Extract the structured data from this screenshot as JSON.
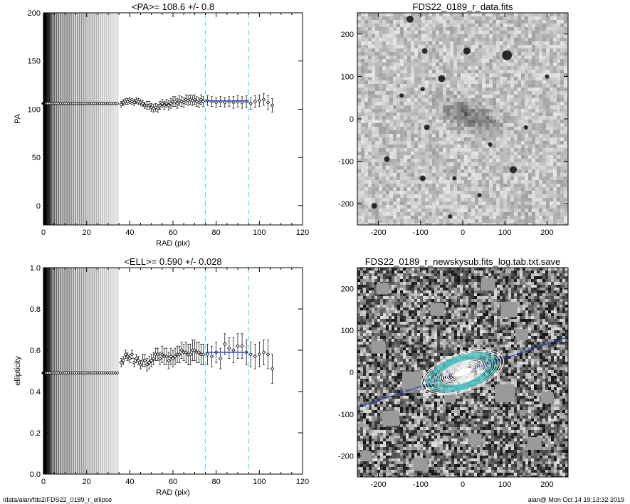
{
  "footer": {
    "path": "/data/alan/fds2/FDS22_0189_r_ellipse",
    "stamp": "alan@  Mon Oct 14 19:13:32 2019"
  },
  "colors": {
    "fit_line": "#2233cc",
    "window_lines": "#66dddd",
    "points": "#000000"
  },
  "chart_data": [
    {
      "id": "pa",
      "type": "scatter",
      "title": "<PA>= 108.6 +/-   0.8",
      "xlabel": "RAD (pix)",
      "ylabel": "PA",
      "xlim": [
        0,
        120
      ],
      "ylim": [
        -20,
        200
      ],
      "xticks": [
        0,
        20,
        40,
        60,
        80,
        100,
        120
      ],
      "yticks": [
        0,
        50,
        100,
        150,
        200
      ],
      "grid": false,
      "dense_region": {
        "x_end": 35,
        "value": 106
      },
      "points": [
        {
          "x": 36,
          "y": 105,
          "err": 3
        },
        {
          "x": 37,
          "y": 107,
          "err": 3
        },
        {
          "x": 38,
          "y": 108,
          "err": 3
        },
        {
          "x": 39,
          "y": 108,
          "err": 3
        },
        {
          "x": 40,
          "y": 109,
          "err": 3
        },
        {
          "x": 41,
          "y": 108,
          "err": 3
        },
        {
          "x": 42,
          "y": 107,
          "err": 3
        },
        {
          "x": 43,
          "y": 109,
          "err": 3
        },
        {
          "x": 44,
          "y": 108,
          "err": 3
        },
        {
          "x": 45,
          "y": 107,
          "err": 3
        },
        {
          "x": 46,
          "y": 106,
          "err": 3
        },
        {
          "x": 47,
          "y": 104,
          "err": 3
        },
        {
          "x": 48,
          "y": 104,
          "err": 4
        },
        {
          "x": 49,
          "y": 104,
          "err": 4
        },
        {
          "x": 50,
          "y": 102,
          "err": 4
        },
        {
          "x": 51,
          "y": 101,
          "err": 4
        },
        {
          "x": 52,
          "y": 102,
          "err": 4
        },
        {
          "x": 53,
          "y": 101,
          "err": 4
        },
        {
          "x": 54,
          "y": 104,
          "err": 4
        },
        {
          "x": 55,
          "y": 106,
          "err": 4
        },
        {
          "x": 56,
          "y": 104,
          "err": 4
        },
        {
          "x": 57,
          "y": 106,
          "err": 4
        },
        {
          "x": 58,
          "y": 104,
          "err": 5
        },
        {
          "x": 59,
          "y": 106,
          "err": 5
        },
        {
          "x": 60,
          "y": 108,
          "err": 5
        },
        {
          "x": 61,
          "y": 108,
          "err": 5
        },
        {
          "x": 62,
          "y": 106,
          "err": 5
        },
        {
          "x": 63,
          "y": 109,
          "err": 5
        },
        {
          "x": 64,
          "y": 108,
          "err": 5
        },
        {
          "x": 65,
          "y": 107,
          "err": 5
        },
        {
          "x": 66,
          "y": 110,
          "err": 5
        },
        {
          "x": 67,
          "y": 109,
          "err": 5
        },
        {
          "x": 68,
          "y": 110,
          "err": 5
        },
        {
          "x": 69,
          "y": 109,
          "err": 5
        },
        {
          "x": 70,
          "y": 110,
          "err": 5
        },
        {
          "x": 71,
          "y": 108,
          "err": 5
        },
        {
          "x": 72,
          "y": 107,
          "err": 5
        },
        {
          "x": 73,
          "y": 110,
          "err": 5
        },
        {
          "x": 74,
          "y": 108,
          "err": 5
        },
        {
          "x": 76,
          "y": 109,
          "err": 5
        },
        {
          "x": 78,
          "y": 108,
          "err": 5
        },
        {
          "x": 80,
          "y": 107,
          "err": 5
        },
        {
          "x": 82,
          "y": 108,
          "err": 5
        },
        {
          "x": 84,
          "y": 107,
          "err": 5
        },
        {
          "x": 86,
          "y": 108,
          "err": 5
        },
        {
          "x": 88,
          "y": 107,
          "err": 6
        },
        {
          "x": 90,
          "y": 108,
          "err": 6
        },
        {
          "x": 92,
          "y": 107,
          "err": 6
        },
        {
          "x": 94,
          "y": 108,
          "err": 6
        },
        {
          "x": 96,
          "y": 106,
          "err": 6
        },
        {
          "x": 98,
          "y": 108,
          "err": 6
        },
        {
          "x": 100,
          "y": 109,
          "err": 6
        },
        {
          "x": 102,
          "y": 110,
          "err": 6
        },
        {
          "x": 104,
          "y": 107,
          "err": 7
        },
        {
          "x": 106,
          "y": 104,
          "err": 7
        }
      ],
      "fit_window": [
        75,
        95
      ],
      "fit_value": 108.6
    },
    {
      "id": "ell",
      "type": "scatter",
      "title": "<ELL>= 0.590 +/-  0.028",
      "xlabel": "RAD (pix)",
      "ylabel": "ellipticity",
      "xlim": [
        0,
        120
      ],
      "ylim": [
        0,
        1
      ],
      "xticks": [
        0,
        20,
        40,
        60,
        80,
        100,
        120
      ],
      "yticks": [
        "0.0",
        "0.2",
        "0.4",
        "0.6",
        "0.8",
        "1.0"
      ],
      "grid": false,
      "dense_region": {
        "x_end": 35,
        "value": 0.49
      },
      "points": [
        {
          "x": 36,
          "y": 0.54,
          "err": 0.02
        },
        {
          "x": 37,
          "y": 0.55,
          "err": 0.02
        },
        {
          "x": 38,
          "y": 0.58,
          "err": 0.02
        },
        {
          "x": 39,
          "y": 0.57,
          "err": 0.02
        },
        {
          "x": 40,
          "y": 0.56,
          "err": 0.02
        },
        {
          "x": 41,
          "y": 0.58,
          "err": 0.02
        },
        {
          "x": 42,
          "y": 0.54,
          "err": 0.02
        },
        {
          "x": 43,
          "y": 0.56,
          "err": 0.02
        },
        {
          "x": 44,
          "y": 0.55,
          "err": 0.02
        },
        {
          "x": 45,
          "y": 0.53,
          "err": 0.02
        },
        {
          "x": 46,
          "y": 0.55,
          "err": 0.03
        },
        {
          "x": 47,
          "y": 0.55,
          "err": 0.03
        },
        {
          "x": 48,
          "y": 0.53,
          "err": 0.03
        },
        {
          "x": 49,
          "y": 0.54,
          "err": 0.03
        },
        {
          "x": 50,
          "y": 0.55,
          "err": 0.03
        },
        {
          "x": 51,
          "y": 0.56,
          "err": 0.03
        },
        {
          "x": 52,
          "y": 0.58,
          "err": 0.03
        },
        {
          "x": 53,
          "y": 0.58,
          "err": 0.03
        },
        {
          "x": 54,
          "y": 0.56,
          "err": 0.03
        },
        {
          "x": 55,
          "y": 0.58,
          "err": 0.04
        },
        {
          "x": 56,
          "y": 0.57,
          "err": 0.04
        },
        {
          "x": 57,
          "y": 0.57,
          "err": 0.04
        },
        {
          "x": 58,
          "y": 0.55,
          "err": 0.04
        },
        {
          "x": 59,
          "y": 0.57,
          "err": 0.04
        },
        {
          "x": 60,
          "y": 0.56,
          "err": 0.04
        },
        {
          "x": 61,
          "y": 0.57,
          "err": 0.04
        },
        {
          "x": 62,
          "y": 0.58,
          "err": 0.04
        },
        {
          "x": 63,
          "y": 0.58,
          "err": 0.04
        },
        {
          "x": 64,
          "y": 0.6,
          "err": 0.04
        },
        {
          "x": 65,
          "y": 0.59,
          "err": 0.04
        },
        {
          "x": 66,
          "y": 0.59,
          "err": 0.05
        },
        {
          "x": 67,
          "y": 0.58,
          "err": 0.05
        },
        {
          "x": 68,
          "y": 0.58,
          "err": 0.05
        },
        {
          "x": 69,
          "y": 0.6,
          "err": 0.05
        },
        {
          "x": 70,
          "y": 0.6,
          "err": 0.05
        },
        {
          "x": 71,
          "y": 0.59,
          "err": 0.05
        },
        {
          "x": 72,
          "y": 0.59,
          "err": 0.05
        },
        {
          "x": 73,
          "y": 0.58,
          "err": 0.05
        },
        {
          "x": 74,
          "y": 0.58,
          "err": 0.05
        },
        {
          "x": 76,
          "y": 0.58,
          "err": 0.05
        },
        {
          "x": 78,
          "y": 0.57,
          "err": 0.05
        },
        {
          "x": 80,
          "y": 0.59,
          "err": 0.05
        },
        {
          "x": 82,
          "y": 0.56,
          "err": 0.05
        },
        {
          "x": 84,
          "y": 0.63,
          "err": 0.05
        },
        {
          "x": 86,
          "y": 0.61,
          "err": 0.05
        },
        {
          "x": 88,
          "y": 0.6,
          "err": 0.06
        },
        {
          "x": 90,
          "y": 0.62,
          "err": 0.06
        },
        {
          "x": 92,
          "y": 0.62,
          "err": 0.06
        },
        {
          "x": 94,
          "y": 0.59,
          "err": 0.06
        },
        {
          "x": 96,
          "y": 0.58,
          "err": 0.06
        },
        {
          "x": 98,
          "y": 0.57,
          "err": 0.06
        },
        {
          "x": 100,
          "y": 0.58,
          "err": 0.06
        },
        {
          "x": 102,
          "y": 0.59,
          "err": 0.06
        },
        {
          "x": 104,
          "y": 0.58,
          "err": 0.07
        },
        {
          "x": 106,
          "y": 0.51,
          "err": 0.07
        }
      ],
      "fit_window": [
        75,
        95
      ],
      "fit_value": 0.59
    },
    {
      "id": "img1",
      "type": "heatmap",
      "title": "FDS22_0189_r_data.fits",
      "xlim": [
        -250,
        250
      ],
      "ylim": [
        -250,
        250
      ],
      "xticks": [
        -200,
        -100,
        0,
        100,
        200
      ],
      "yticks": [
        -200,
        -100,
        0,
        100,
        200
      ],
      "grid": false
    },
    {
      "id": "img2",
      "type": "heatmap",
      "title": "FDS22_0189_r_newskysub.fits_log.tab.txt.save",
      "xlim": [
        -250,
        250
      ],
      "ylim": [
        -250,
        250
      ],
      "xticks": [
        -200,
        -100,
        0,
        100,
        200
      ],
      "yticks": [
        -200,
        -100,
        0,
        100,
        200
      ],
      "grid": false,
      "pa_line_angle_deg": 18.6
    }
  ]
}
